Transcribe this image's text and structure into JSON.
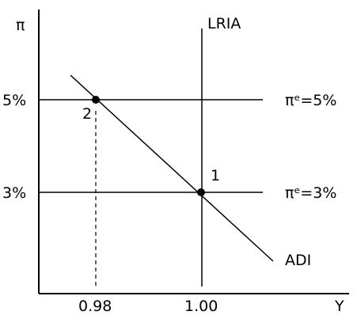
{
  "axes": {
    "y_label": "π",
    "x_label": "Y"
  },
  "ticks": {
    "y_5": "5%",
    "y_3": "3%",
    "x_098": "0.98",
    "x_100": "1.00"
  },
  "curves": {
    "lria": "LRIA",
    "adi": "ADI",
    "pie_5": "πᵉ=5%",
    "pie_3": "πᵉ=3%"
  },
  "points": {
    "p1": "1",
    "p2": "2"
  },
  "colors": {
    "ink": "#000000",
    "background": "#ffffff"
  }
}
